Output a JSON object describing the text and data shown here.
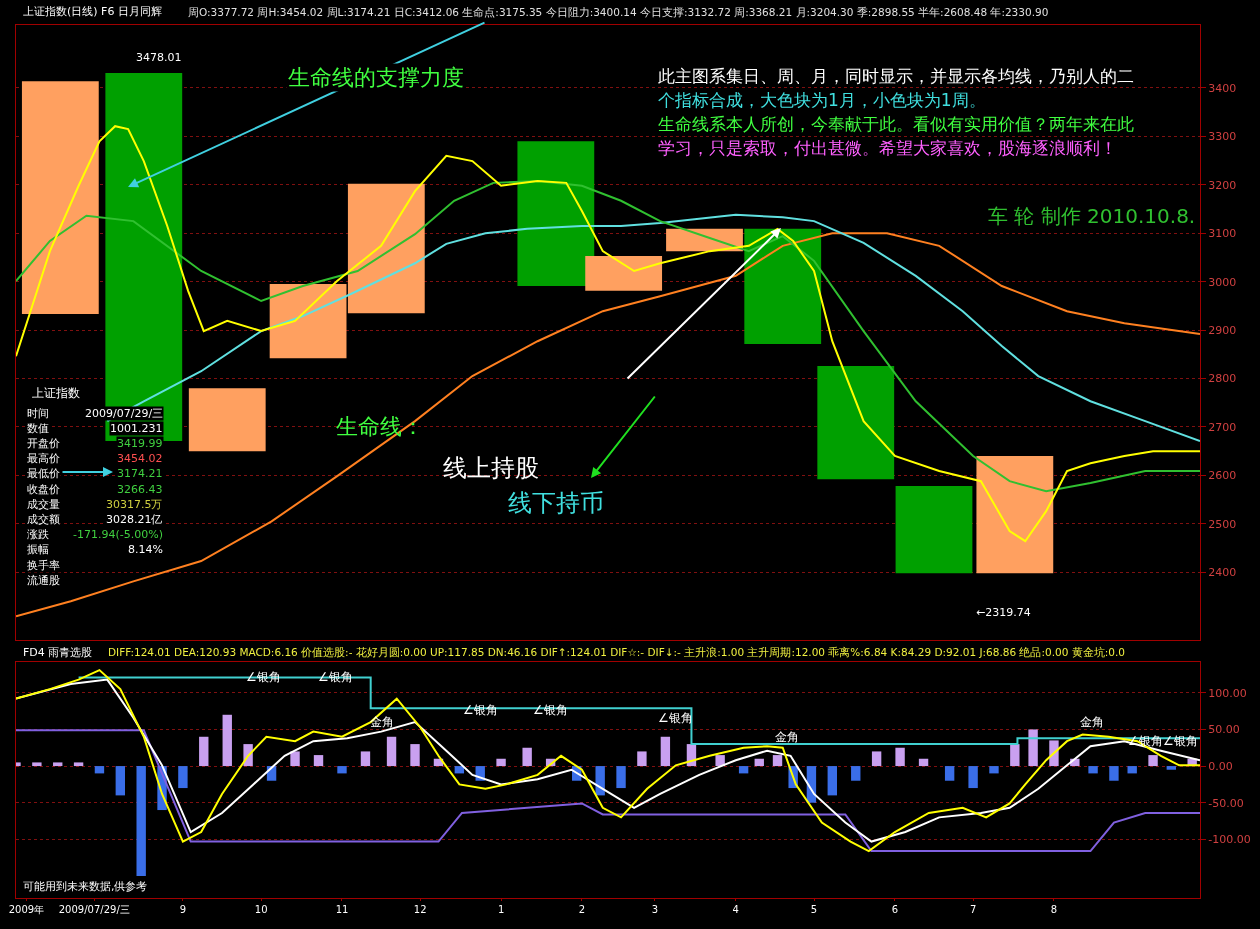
{
  "chart_data": [
    {
      "type": "bar",
      "title": "上证指数(日线) F6 日月同辉",
      "subtitle": "周O:3377.72 周H:3454.02 周L:3174.21 日C:3412.06 生命点:3175.35 今日阻力:3400.14 今日支撑:3132.72 周:3368.21 月:3204.30 季:2898.55 半年:2608.48 年:2330.90",
      "xlim": [
        "2009-06-29",
        "2010-09-26"
      ],
      "ylim": [
        2260,
        3530
      ],
      "yticks": [
        2400,
        2500,
        2600,
        2700,
        2800,
        2900,
        3000,
        3100,
        3200,
        3300,
        3400
      ],
      "tick_labels": "y",
      "grid": "y",
      "series": [
        {
          "x": [
            "2009-07-16",
            "2009-08-17",
            "2009-09-18",
            "2009-10-19",
            "2009-11-18",
            "2010-01-22",
            "2010-02-17",
            "2010-03-20",
            "2010-04-19",
            "2010-05-17",
            "2010-06-16",
            "2010-07-17"
          ],
          "base": [
            2933,
            2671,
            2650,
            2842,
            2935,
            2991,
            2981,
            3063,
            2871,
            2592,
            2398,
            2398
          ],
          "values": [
            481,
            760,
            130,
            153,
            267,
            299,
            72,
            46,
            238,
            234,
            180,
            242
          ],
          "colors": [
            "#ffa060",
            "#00a000",
            "#ffa060",
            "#ffa060",
            "#ffa060",
            "#00a000",
            "#ffa060",
            "#ffa060",
            "#00a000",
            "#00a000",
            "#00a000",
            "#ffa060"
          ]
        },
        {
          "type": "line",
          "color": "#ff8020",
          "x": [
            "2009-06-29",
            "2009-07-20",
            "2009-08-13",
            "2009-09-08",
            "2009-10-05",
            "2009-10-30",
            "2009-11-29",
            "2009-12-21",
            "2010-01-15",
            "2010-02-09",
            "2010-03-03",
            "2010-04-01",
            "2010-04-19",
            "2010-05-08",
            "2010-05-29",
            "2010-06-18",
            "2010-07-12",
            "2010-08-06",
            "2010-08-28",
            "2010-09-26"
          ],
          "values": [
            2309,
            2340,
            2381,
            2423,
            2505,
            2598,
            2712,
            2805,
            2877,
            2939,
            2970,
            3012,
            3074,
            3100,
            3100,
            3074,
            2991,
            2939,
            2914,
            2892
          ]
        },
        {
          "type": "line",
          "color": "#60e0e0",
          "x": [
            "2009-08-03",
            "2009-08-17",
            "2009-09-08",
            "2009-10-01",
            "2009-10-17",
            "2009-11-05",
            "2009-11-29",
            "2009-12-11",
            "2009-12-26",
            "2010-01-11",
            "2010-02-01",
            "2010-02-16",
            "2010-03-03",
            "2010-04-01",
            "2010-04-19",
            "2010-05-01",
            "2010-05-20",
            "2010-06-09",
            "2010-06-27",
            "2010-07-12",
            "2010-07-26",
            "2010-08-15",
            "2010-09-05",
            "2010-09-26"
          ],
          "values": [
            2712,
            2753,
            2815,
            2898,
            2929,
            2976,
            3038,
            3078,
            3100,
            3109,
            3115,
            3115,
            3121,
            3138,
            3133,
            3125,
            3080,
            3012,
            2939,
            2867,
            2805,
            2753,
            2712,
            2671
          ]
        },
        {
          "type": "line",
          "color": "#30c030",
          "x": [
            "2009-06-29",
            "2009-07-12",
            "2009-07-26",
            "2009-08-13",
            "2009-09-08",
            "2009-10-01",
            "2009-10-17",
            "2009-11-07",
            "2009-11-29",
            "2009-12-14",
            "2009-12-29",
            "2010-01-15",
            "2010-02-01",
            "2010-02-16",
            "2010-03-03",
            "2010-03-22",
            "2010-04-06",
            "2010-04-19",
            "2010-05-01",
            "2010-05-20",
            "2010-06-09",
            "2010-07-01",
            "2010-07-15",
            "2010-07-29",
            "2010-08-15",
            "2010-09-05",
            "2010-09-26"
          ],
          "values": [
            3001,
            3084,
            3136,
            3125,
            3022,
            2960,
            2991,
            3022,
            3098,
            3167,
            3204,
            3208,
            3198,
            3167,
            3125,
            3090,
            3063,
            3094,
            3043,
            2898,
            2753,
            2640,
            2588,
            2567,
            2584,
            2609,
            2609
          ]
        },
        {
          "type": "line",
          "color": "#ffff00",
          "x": [
            "2009-06-29",
            "2009-07-12",
            "2009-07-23",
            "2009-07-31",
            "2009-08-06",
            "2009-08-11",
            "2009-08-17",
            "2009-08-26",
            "2009-09-03",
            "2009-09-09",
            "2009-09-18",
            "2009-10-01",
            "2009-10-14",
            "2009-10-30",
            "2009-11-16",
            "2009-11-29",
            "2009-12-11",
            "2009-12-21",
            "2010-01-01",
            "2010-01-15",
            "2010-01-26",
            "2010-02-01",
            "2010-02-09",
            "2010-02-21",
            "2010-03-03",
            "2010-03-22",
            "2010-04-06",
            "2010-04-17",
            "2010-04-23",
            "2010-05-01",
            "2010-05-08",
            "2010-05-20",
            "2010-06-01",
            "2010-06-18",
            "2010-07-04",
            "2010-07-15",
            "2010-07-21",
            "2010-07-29",
            "2010-08-06",
            "2010-08-15",
            "2010-08-28",
            "2010-09-08",
            "2010-09-26"
          ],
          "values": [
            2846,
            3063,
            3198,
            3290,
            3321,
            3315,
            3249,
            3115,
            2981,
            2898,
            2919,
            2898,
            2919,
            3001,
            3074,
            3187,
            3260,
            3249,
            3198,
            3208,
            3204,
            3146,
            3063,
            3022,
            3038,
            3063,
            3074,
            3109,
            3084,
            3022,
            2877,
            2712,
            2640,
            2609,
            2588,
            2485,
            2464,
            2526,
            2609,
            2625,
            2640,
            2650,
            2650
          ]
        }
      ],
      "annotations": [
        "生命线的支撑力度",
        "此主图系集日、周、月，同时显示，并显示各均线，乃别人的二",
        "个指标合成，大色块为1月，小色块为1周。",
        "生命线系本人所创，今奉献于此。看似有实用价值？两年来在此",
        "学习，只是索取，付出甚微。希望大家喜欢，股海逐浪顺利！",
        "车 轮 制作 2010.10.8.",
        "生命线：",
        "线上持股",
        "线下持币",
        "3478.01",
        "←2319.74",
        "上证指数",
        "时间",
        "2009/07/29/三",
        "数值",
        "1001.231",
        "开盘价",
        "3419.99",
        "最高价",
        "3454.02",
        "最低价",
        "3174.21",
        "收盘价",
        "3266.43",
        "成交量",
        "30317.5万",
        "成交额",
        "3028.21亿",
        "涨跌",
        "-171.94(-5.00%)",
        "振幅",
        "8.14%",
        "换手率",
        "流通股"
      ]
    },
    {
      "type": "bar",
      "title": "FD4 雨青选股",
      "subtitle": "DIFF:124.01 DEA:120.93 MACD:6.16 价值选股:- 花好月圆:0.00 UP:117.85 DN:46.16 DIF↑:124.01 DIF☆:- DIF↓:- 主升浪:1.00 主升周期:12.00 乖离%:6.84 K:84.29 D:92.01 J:68.86 绝品:0.00 黄金坑:0.0",
      "xlim": [
        "2009-06-29",
        "2010-09-26"
      ],
      "ylim": [
        -180,
        142
      ],
      "xticks": [
        {
          "value": "2009-07-03",
          "label": "2009年"
        },
        {
          "value": "2009-07-29",
          "label": "2009/07/29/三"
        },
        {
          "value": "2009-09-01",
          "label": "9"
        },
        {
          "value": "2009-10-01",
          "label": "10"
        },
        {
          "value": "2009-11-01",
          "label": "11"
        },
        {
          "value": "2009-12-01",
          "label": "12"
        },
        {
          "value": "2010-01-01",
          "label": "1"
        },
        {
          "value": "2010-02-01",
          "label": "2"
        },
        {
          "value": "2010-03-01",
          "label": "3"
        },
        {
          "value": "2010-04-01",
          "label": "4"
        },
        {
          "value": "2010-05-01",
          "label": "5"
        },
        {
          "value": "2010-06-01",
          "label": "6"
        },
        {
          "value": "2010-07-01",
          "label": "7"
        },
        {
          "value": "2010-08-01",
          "label": "8"
        }
      ],
      "yticks": [
        {
          "value": 100,
          "label": "100.00"
        },
        {
          "value": 50,
          "label": "50.00"
        },
        {
          "value": 0,
          "label": "0.00"
        },
        {
          "value": -50,
          "label": "-50.00"
        },
        {
          "value": -100,
          "label": "-100.00"
        }
      ],
      "grid": "y",
      "series": [
        {
          "x": [
            "2009-06-29",
            "2009-07-07",
            "2009-07-15",
            "2009-07-23",
            "2009-07-31",
            "2009-08-08",
            "2009-08-16",
            "2009-08-24",
            "2009-09-01",
            "2009-09-09",
            "2009-09-18",
            "2009-09-26",
            "2009-10-05",
            "2009-10-14",
            "2009-10-23",
            "2009-11-01",
            "2009-11-10",
            "2009-11-20",
            "2009-11-29",
            "2009-12-08",
            "2009-12-16",
            "2009-12-24",
            "2010-01-01",
            "2010-01-11",
            "2010-01-20",
            "2010-01-30",
            "2010-02-08",
            "2010-02-16",
            "2010-02-24",
            "2010-03-05",
            "2010-03-15",
            "2010-03-26",
            "2010-04-04",
            "2010-04-10",
            "2010-04-17",
            "2010-04-23",
            "2010-04-30",
            "2010-05-08",
            "2010-05-17",
            "2010-05-25",
            "2010-06-03",
            "2010-06-12",
            "2010-06-22",
            "2010-07-01",
            "2010-07-09",
            "2010-07-17",
            "2010-07-24",
            "2010-08-01",
            "2010-08-09",
            "2010-08-16",
            "2010-08-24",
            "2010-08-31",
            "2010-09-08",
            "2010-09-15",
            "2010-09-23"
          ],
          "values": [
            5,
            5,
            5,
            5,
            -10,
            -40,
            -150,
            -60,
            -30,
            40,
            70,
            30,
            -20,
            20,
            15,
            -10,
            20,
            40,
            30,
            10,
            -10,
            -20,
            10,
            25,
            10,
            -20,
            -40,
            -30,
            20,
            40,
            30,
            15,
            -10,
            10,
            15,
            -30,
            -50,
            -40,
            -20,
            20,
            25,
            10,
            -20,
            -30,
            -10,
            30,
            50,
            35,
            10,
            -10,
            -20,
            -10,
            15,
            -5,
            10
          ],
          "colors": [
            "#c9a0f0",
            "#c9a0f0",
            "#c9a0f0",
            "#c9a0f0",
            "#3a6ee8",
            "#3a6ee8",
            "#3a6ee8",
            "#3a6ee8",
            "#3a6ee8",
            "#c9a0f0",
            "#c9a0f0",
            "#c9a0f0",
            "#3a6ee8",
            "#c9a0f0",
            "#c9a0f0",
            "#3a6ee8",
            "#c9a0f0",
            "#c9a0f0",
            "#c9a0f0",
            "#c9a0f0",
            "#3a6ee8",
            "#3a6ee8",
            "#c9a0f0",
            "#c9a0f0",
            "#c9a0f0",
            "#3a6ee8",
            "#3a6ee8",
            "#3a6ee8",
            "#c9a0f0",
            "#c9a0f0",
            "#c9a0f0",
            "#c9a0f0",
            "#3a6ee8",
            "#c9a0f0",
            "#c9a0f0",
            "#3a6ee8",
            "#3a6ee8",
            "#3a6ee8",
            "#3a6ee8",
            "#c9a0f0",
            "#c9a0f0",
            "#c9a0f0",
            "#3a6ee8",
            "#3a6ee8",
            "#3a6ee8",
            "#c9a0f0",
            "#c9a0f0",
            "#c9a0f0",
            "#c9a0f0",
            "#3a6ee8",
            "#3a6ee8",
            "#3a6ee8",
            "#c9a0f0",
            "#3a6ee8",
            "#c9a0f0"
          ]
        },
        {
          "type": "step",
          "color": "#40d0d0",
          "x": [
            "2009-07-23",
            "2009-11-12",
            "2010-03-15",
            "2010-07-18",
            "2010-09-26"
          ],
          "values": [
            121,
            79,
            30,
            38,
            38
          ]
        },
        {
          "type": "line",
          "color": "#8060e0",
          "x": [
            "2009-06-29",
            "2009-08-17",
            "2009-09-04",
            "2009-12-08",
            "2009-12-17",
            "2010-02-01",
            "2010-02-09",
            "2010-05-13",
            "2010-05-23",
            "2010-08-15",
            "2010-08-24",
            "2010-09-05",
            "2010-09-26"
          ],
          "values": [
            49,
            49,
            -103,
            -103,
            -64,
            -51,
            -66,
            -66,
            -116,
            -116,
            -77,
            -64,
            -64
          ]
        },
        {
          "type": "line",
          "color": "#ffffff",
          "x": [
            "2009-06-29",
            "2009-07-20",
            "2009-08-03",
            "2009-08-13",
            "2009-08-24",
            "2009-09-04",
            "2009-09-16",
            "2009-09-28",
            "2009-10-10",
            "2009-10-21",
            "2009-11-03",
            "2009-11-16",
            "2009-11-29",
            "2009-12-11",
            "2009-12-21",
            "2010-01-01",
            "2010-01-15",
            "2010-01-28",
            "2010-02-09",
            "2010-02-21",
            "2010-03-03",
            "2010-03-18",
            "2010-04-01",
            "2010-04-13",
            "2010-04-22",
            "2010-05-01",
            "2010-05-13",
            "2010-05-23",
            "2010-06-05",
            "2010-06-18",
            "2010-07-04",
            "2010-07-15",
            "2010-07-26",
            "2010-08-06",
            "2010-08-15",
            "2010-08-28",
            "2010-09-11",
            "2010-09-26"
          ],
          "values": [
            92,
            112,
            118,
            66,
            1,
            -90,
            -64,
            -25,
            14,
            34,
            38,
            47,
            60,
            21,
            -12,
            -25,
            -18,
            -5,
            -31,
            -57,
            -38,
            -12,
            8,
            21,
            14,
            -38,
            -77,
            -103,
            -90,
            -70,
            -64,
            -57,
            -31,
            1,
            27,
            34,
            21,
            8
          ]
        },
        {
          "type": "line",
          "color": "#ffff00",
          "x": [
            "2009-06-29",
            "2009-07-12",
            "2009-07-23",
            "2009-07-31",
            "2009-08-08",
            "2009-08-17",
            "2009-08-24",
            "2009-09-01",
            "2009-09-08",
            "2009-09-16",
            "2009-09-26",
            "2009-10-03",
            "2009-10-14",
            "2009-10-21",
            "2009-11-01",
            "2009-11-12",
            "2009-11-22",
            "2009-12-01",
            "2009-12-08",
            "2009-12-16",
            "2009-12-26",
            "2010-01-03",
            "2010-01-15",
            "2010-01-24",
            "2010-02-01",
            "2010-02-09",
            "2010-02-16",
            "2010-02-26",
            "2010-03-09",
            "2010-03-22",
            "2010-04-04",
            "2010-04-13",
            "2010-04-19",
            "2010-04-24",
            "2010-05-04",
            "2010-05-15",
            "2010-05-22",
            "2010-06-01",
            "2010-06-14",
            "2010-06-27",
            "2010-07-06",
            "2010-07-15",
            "2010-07-21",
            "2010-07-29",
            "2010-08-06",
            "2010-08-12",
            "2010-08-22",
            "2010-09-02",
            "2010-09-11",
            "2010-09-18",
            "2010-09-26"
          ],
          "values": [
            92,
            105,
            118,
            131,
            105,
            40,
            -38,
            -103,
            -90,
            -38,
            14,
            40,
            34,
            47,
            40,
            60,
            92,
            53,
            14,
            -25,
            -31,
            -25,
            -12,
            14,
            -5,
            -57,
            -70,
            -31,
            1,
            14,
            25,
            27,
            25,
            -25,
            -77,
            -103,
            -116,
            -90,
            -64,
            -57,
            -70,
            -51,
            -25,
            8,
            34,
            43,
            40,
            34,
            14,
            1,
            1
          ]
        }
      ],
      "annotations": [
        "可能用到未来数据,供参考",
        "∠银角",
        "∠银角",
        "∠银角",
        "∠银角",
        "∠银角",
        "∠银角",
        "∠银角",
        "金角",
        "金角",
        "金角"
      ]
    }
  ]
}
